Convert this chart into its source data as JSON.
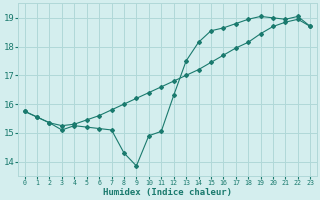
{
  "xlabel": "Humidex (Indice chaleur)",
  "bg_color": "#d4eeee",
  "grid_color": "#b0d8d8",
  "line_color": "#1a7a6e",
  "xlim": [
    -0.5,
    23.5
  ],
  "ylim": [
    13.5,
    19.5
  ],
  "xticks": [
    0,
    1,
    2,
    3,
    4,
    5,
    6,
    7,
    8,
    9,
    10,
    11,
    12,
    13,
    14,
    15,
    16,
    17,
    18,
    19,
    20,
    21,
    22,
    23
  ],
  "yticks": [
    14,
    15,
    16,
    17,
    18,
    19
  ],
  "line1_x": [
    0,
    1,
    2,
    3,
    4,
    5,
    6,
    7,
    8,
    9,
    10,
    11,
    12,
    13,
    14,
    15,
    16,
    17,
    18,
    19,
    20,
    21,
    22,
    23
  ],
  "line1_y": [
    15.75,
    15.55,
    15.35,
    15.1,
    15.25,
    15.2,
    15.15,
    15.1,
    14.3,
    13.85,
    14.9,
    15.05,
    16.3,
    17.5,
    18.15,
    18.55,
    18.65,
    18.8,
    18.95,
    19.05,
    19.0,
    18.95,
    19.05,
    18.7
  ],
  "line2_x": [
    0,
    1,
    2,
    3,
    4,
    5,
    6,
    7,
    8,
    9,
    10,
    11,
    12,
    13,
    14,
    15,
    16,
    17,
    18,
    19,
    20,
    21,
    22,
    23
  ],
  "line2_y": [
    15.75,
    15.55,
    15.35,
    15.25,
    15.3,
    15.45,
    15.6,
    15.8,
    16.0,
    16.2,
    16.4,
    16.6,
    16.8,
    17.0,
    17.2,
    17.45,
    17.7,
    17.95,
    18.15,
    18.45,
    18.7,
    18.85,
    18.95,
    18.7
  ]
}
